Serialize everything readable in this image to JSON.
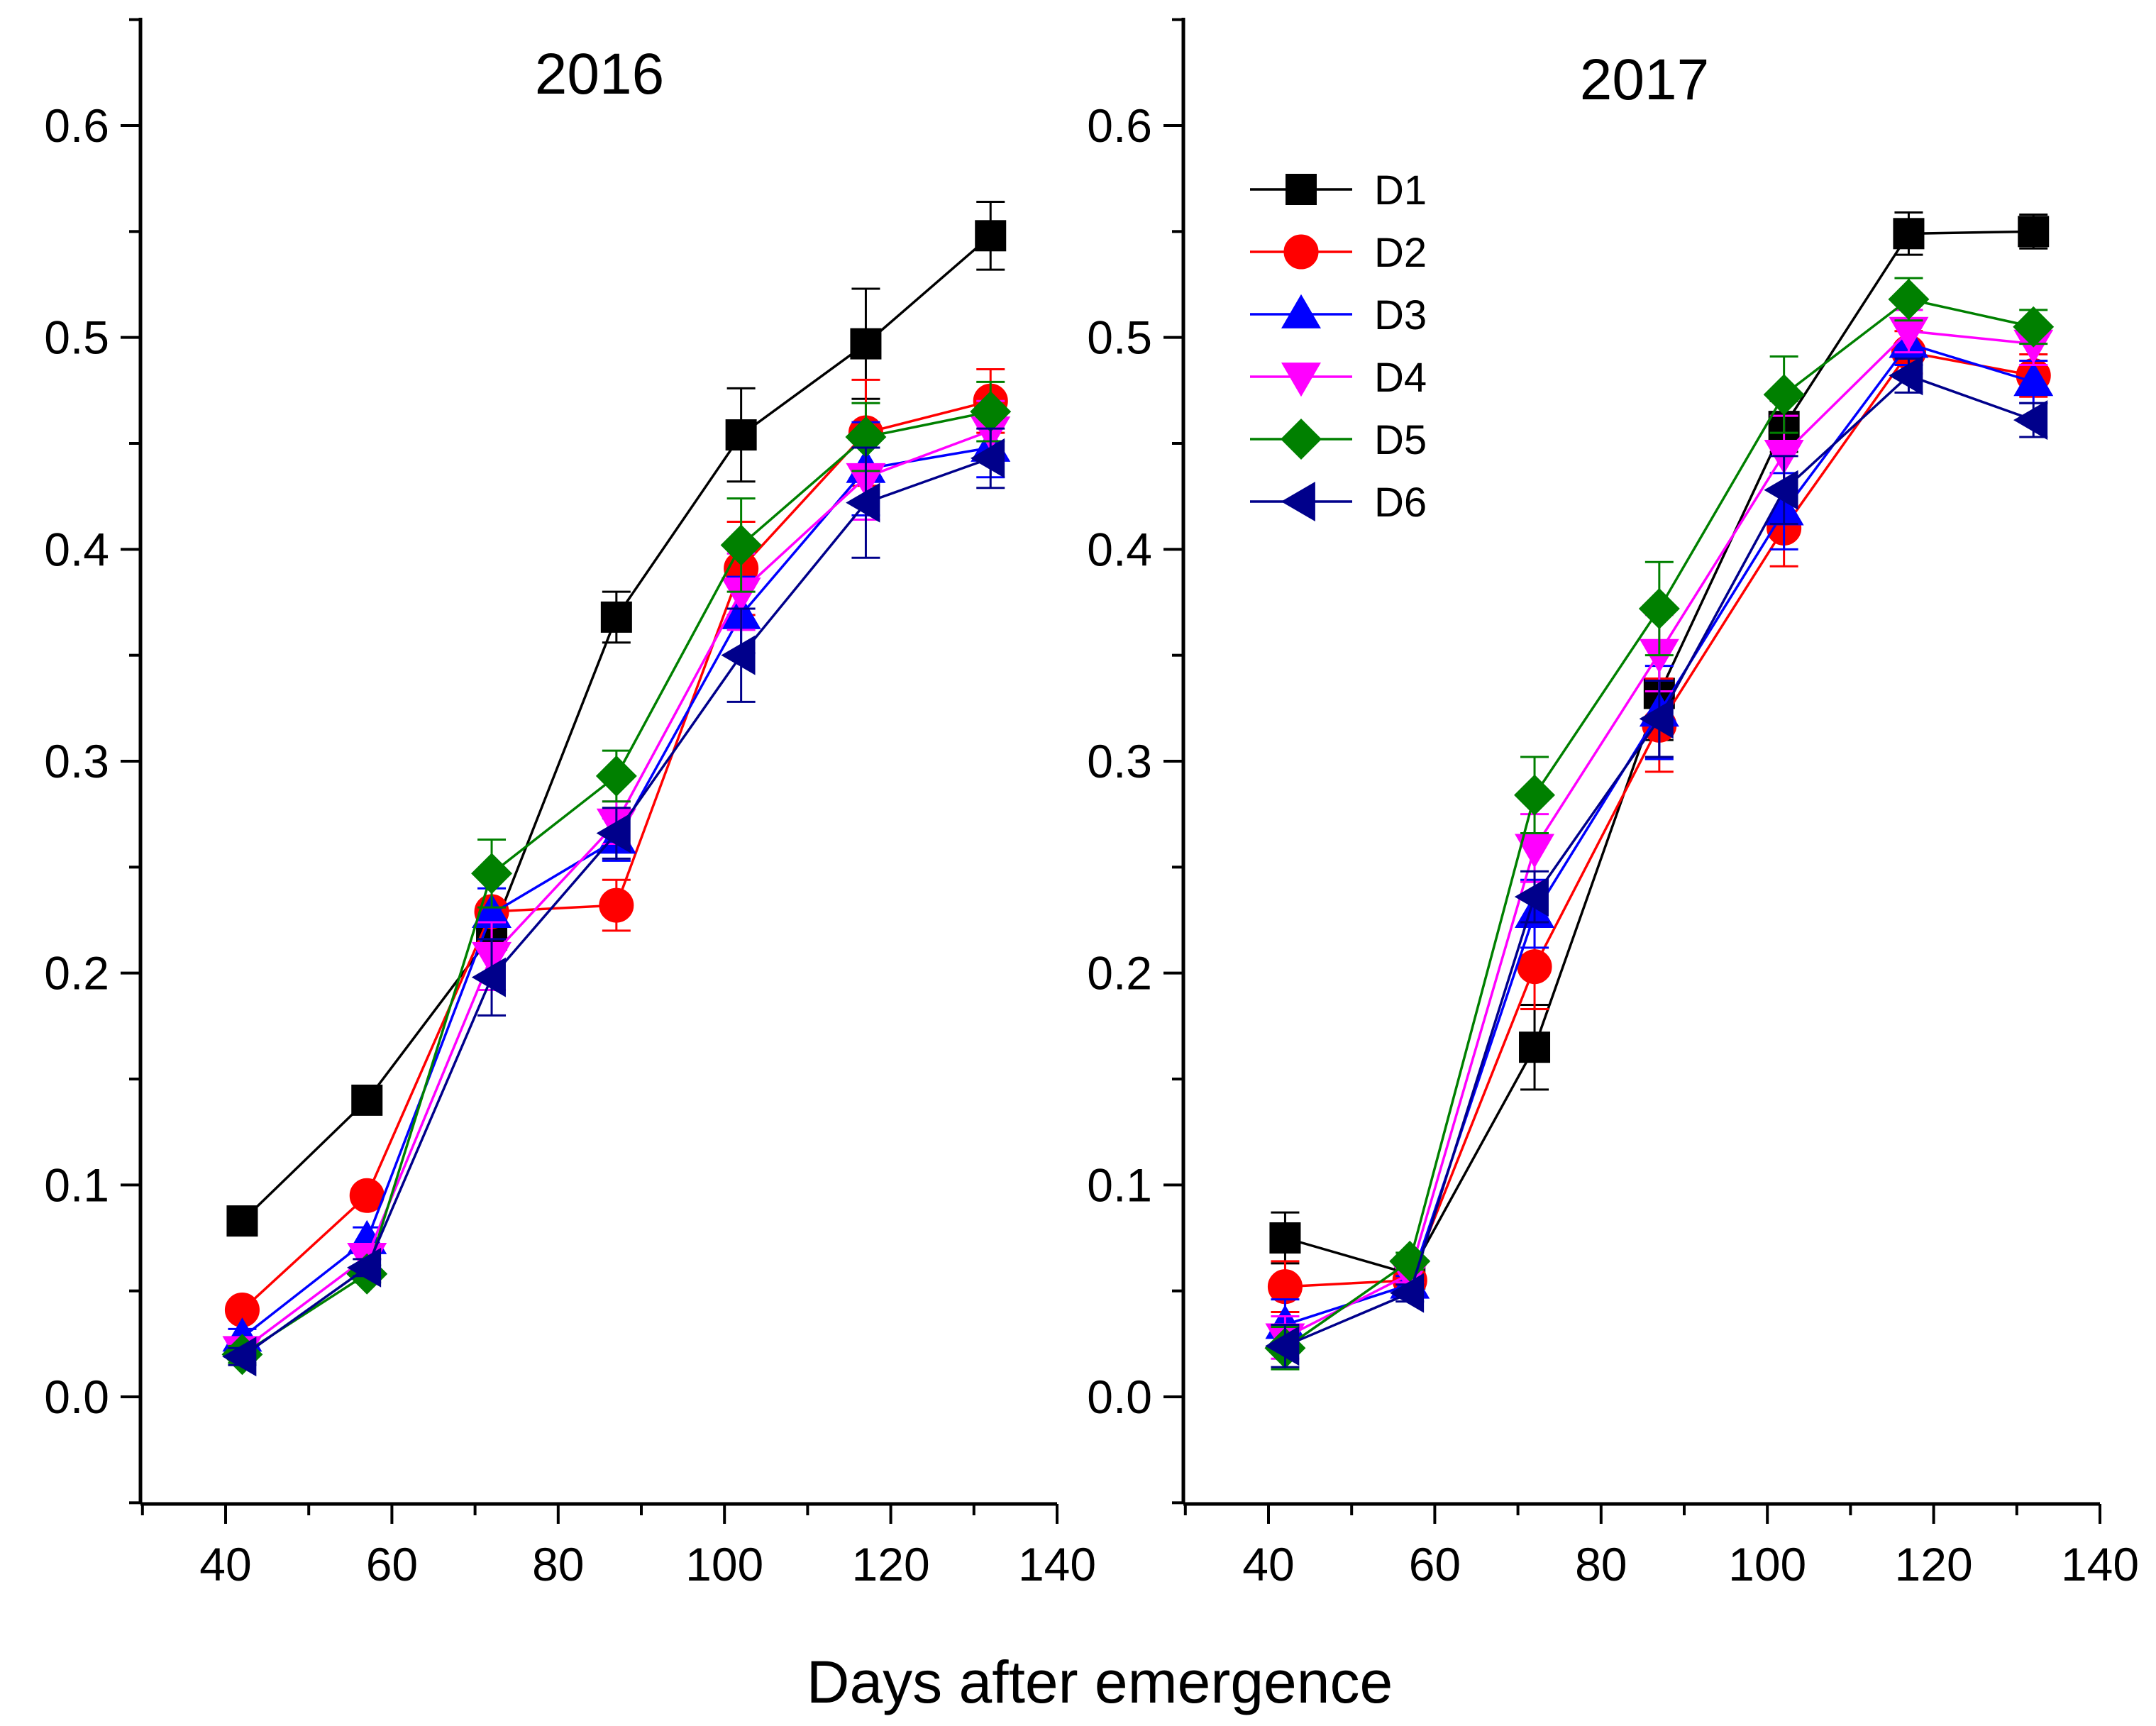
{
  "chart_data": [
    {
      "type": "line",
      "title": "2016",
      "xlabel": "Days after emergence",
      "ylabel": "",
      "xlim": [
        30,
        140
      ],
      "ylim": [
        -0.05,
        0.65
      ],
      "xticks": [
        "40",
        "60",
        "80",
        "100",
        "120",
        "140"
      ],
      "yticks": [
        "0.0",
        "0.1",
        "0.2",
        "0.3",
        "0.4",
        "0.5",
        "0.6"
      ],
      "x": [
        42,
        57,
        72,
        87,
        102,
        117,
        132
      ],
      "series": [
        {
          "name": "D1",
          "color": "#000000",
          "marker": "square",
          "values": [
            0.083,
            0.14,
            0.218,
            0.368,
            0.454,
            0.497,
            0.548
          ],
          "errors": [
            0.004,
            0.004,
            0.006,
            0.012,
            0.022,
            0.026,
            0.016
          ]
        },
        {
          "name": "D2",
          "color": "#ff0000",
          "marker": "circle",
          "values": [
            0.041,
            0.095,
            0.229,
            0.232,
            0.391,
            0.455,
            0.47
          ],
          "errors": [
            0.004,
            0.004,
            0.016,
            0.012,
            0.022,
            0.025,
            0.015
          ]
        },
        {
          "name": "D3",
          "color": "#0000ff",
          "marker": "triangle-up",
          "values": [
            0.028,
            0.074,
            0.228,
            0.263,
            0.369,
            0.438,
            0.448
          ],
          "errors": [
            0.004,
            0.006,
            0.012,
            0.01,
            0.018,
            0.022,
            0.014
          ]
        },
        {
          "name": "D4",
          "color": "#ff00ff",
          "marker": "triangle-down",
          "values": [
            0.022,
            0.066,
            0.208,
            0.271,
            0.38,
            0.434,
            0.456
          ],
          "errors": [
            0.004,
            0.006,
            0.016,
            0.01,
            0.018,
            0.02,
            0.014
          ]
        },
        {
          "name": "D5",
          "color": "#008000",
          "marker": "diamond",
          "values": [
            0.02,
            0.058,
            0.247,
            0.293,
            0.402,
            0.453,
            0.465
          ],
          "errors": [
            0.004,
            0.004,
            0.016,
            0.012,
            0.022,
            0.016,
            0.014
          ]
        },
        {
          "name": "D6",
          "color": "#00008b",
          "marker": "triangle-left",
          "values": [
            0.019,
            0.061,
            0.198,
            0.266,
            0.35,
            0.422,
            0.443
          ],
          "errors": [
            0.004,
            0.004,
            0.018,
            0.012,
            0.022,
            0.026,
            0.014
          ]
        }
      ]
    },
    {
      "type": "line",
      "title": "2017",
      "xlabel": "Days after emergence",
      "ylabel": "",
      "xlim": [
        30,
        140
      ],
      "ylim": [
        -0.05,
        0.65
      ],
      "xticks": [
        "40",
        "60",
        "80",
        "100",
        "120",
        "140"
      ],
      "yticks": [
        "0.0",
        "0.1",
        "0.2",
        "0.3",
        "0.4",
        "0.5",
        "0.6"
      ],
      "legend": "top-left",
      "x": [
        42,
        57,
        72,
        87,
        102,
        117,
        132
      ],
      "series": [
        {
          "name": "D1",
          "color": "#000000",
          "marker": "square",
          "values": [
            0.075,
            0.058,
            0.165,
            0.332,
            0.458,
            0.549,
            0.55
          ],
          "errors": [
            0.012,
            0.004,
            0.02,
            0.022,
            0.012,
            0.01,
            0.008
          ]
        },
        {
          "name": "D2",
          "color": "#ff0000",
          "marker": "circle",
          "values": [
            0.052,
            0.055,
            0.203,
            0.317,
            0.41,
            0.493,
            0.482
          ],
          "errors": [
            0.012,
            0.004,
            0.02,
            0.022,
            0.018,
            0.01,
            0.01
          ]
        },
        {
          "name": "D3",
          "color": "#0000ff",
          "marker": "triangle-up",
          "values": [
            0.034,
            0.053,
            0.228,
            0.323,
            0.418,
            0.497,
            0.479
          ],
          "errors": [
            0.012,
            0.004,
            0.016,
            0.022,
            0.018,
            0.01,
            0.01
          ]
        },
        {
          "name": "D4",
          "color": "#ff00ff",
          "marker": "triangle-down",
          "values": [
            0.028,
            0.058,
            0.259,
            0.351,
            0.445,
            0.503,
            0.497
          ],
          "errors": [
            0.01,
            0.004,
            0.016,
            0.018,
            0.018,
            0.01,
            0.01
          ]
        },
        {
          "name": "D5",
          "color": "#008000",
          "marker": "diamond",
          "values": [
            0.023,
            0.064,
            0.284,
            0.372,
            0.473,
            0.518,
            0.505
          ],
          "errors": [
            0.01,
            0.004,
            0.018,
            0.022,
            0.018,
            0.01,
            0.008
          ]
        },
        {
          "name": "D6",
          "color": "#00008b",
          "marker": "triangle-left",
          "values": [
            0.024,
            0.049,
            0.236,
            0.32,
            0.428,
            0.482,
            0.461
          ],
          "errors": [
            0.01,
            0.004,
            0.012,
            0.018,
            0.016,
            0.008,
            0.008
          ]
        }
      ]
    }
  ]
}
